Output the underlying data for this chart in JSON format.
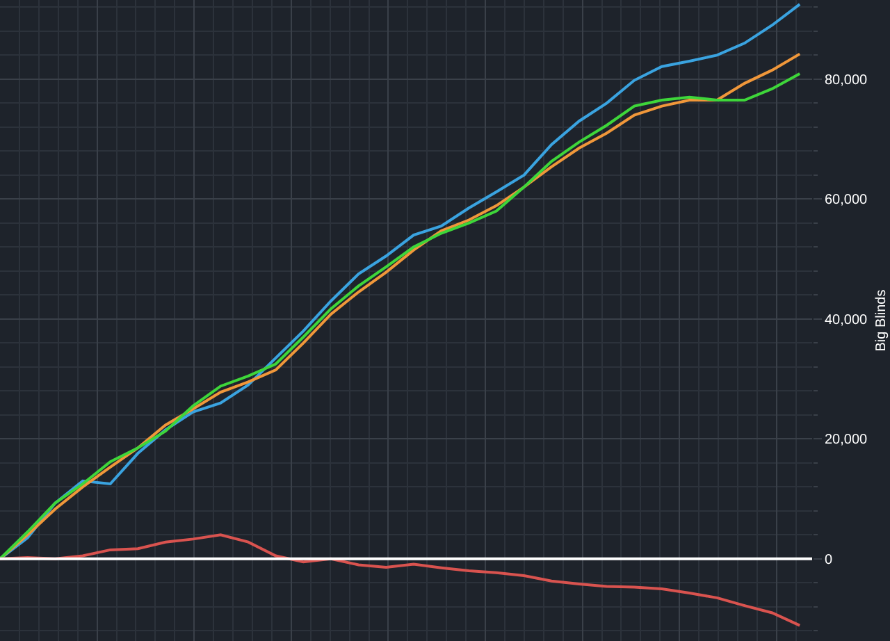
{
  "chart_data": {
    "type": "line",
    "ylabel": "Big Blinds",
    "categories": [
      null,
      null,
      null,
      null,
      null,
      null,
      null,
      null,
      null,
      null,
      null,
      null,
      null,
      null,
      null,
      null,
      null,
      null,
      null,
      null,
      null,
      null,
      null,
      null,
      null,
      null,
      null,
      null,
      null,
      null
    ],
    "series": [
      {
        "color": "#3aa3e0",
        "values": [
          0,
          3500,
          9300,
          13000,
          12500,
          17600,
          21500,
          24500,
          26000,
          29000,
          33500,
          38000,
          43000,
          47500,
          50500,
          54000,
          55500,
          58500,
          61200,
          64000,
          69100,
          73000,
          76000,
          79800,
          82100,
          83000,
          84000,
          86000,
          89000,
          92500
        ]
      },
      {
        "color": "#f0973a",
        "values": [
          0,
          4000,
          8300,
          12000,
          15300,
          18500,
          22300,
          25000,
          27800,
          29500,
          31500,
          36000,
          40800,
          44500,
          47800,
          51500,
          54700,
          56500,
          58900,
          62000,
          65400,
          68500,
          71000,
          74000,
          75500,
          76500,
          76500,
          79300,
          81500,
          84200
        ]
      },
      {
        "color": "#3ed63a",
        "values": [
          0,
          4500,
          9300,
          12500,
          16200,
          18500,
          21300,
          25500,
          28800,
          30500,
          32500,
          37000,
          41700,
          45500,
          48700,
          52000,
          54300,
          56000,
          58000,
          62000,
          66300,
          69500,
          72300,
          75500,
          76500,
          77000,
          76500,
          76500,
          78400,
          80900
        ]
      },
      {
        "color": "#d9534f",
        "values": [
          0,
          200,
          0,
          500,
          1500,
          1700,
          2800,
          3300,
          4000,
          2800,
          500,
          -500,
          0,
          -1000,
          -1400,
          -900,
          -1500,
          -2000,
          -2300,
          -2800,
          -3700,
          -4200,
          -4600,
          -4700,
          -5000,
          -5700,
          -6500,
          -7800,
          -9000,
          -11100
        ]
      }
    ],
    "ylim": [
      -13700,
      93200
    ],
    "yticks": [
      0,
      {
        "value": 20000,
        "label": "20,000"
      },
      {
        "value": 40000,
        "label": "40,000"
      },
      {
        "value": 60000,
        "label": "60,000"
      },
      {
        "value": 80000,
        "label": "80,000"
      }
    ],
    "grid": true,
    "marker": "none",
    "line_style": "solid",
    "ref_lines": [
      {
        "axis": "y",
        "value": 0,
        "color": "#ffffff"
      }
    ]
  }
}
